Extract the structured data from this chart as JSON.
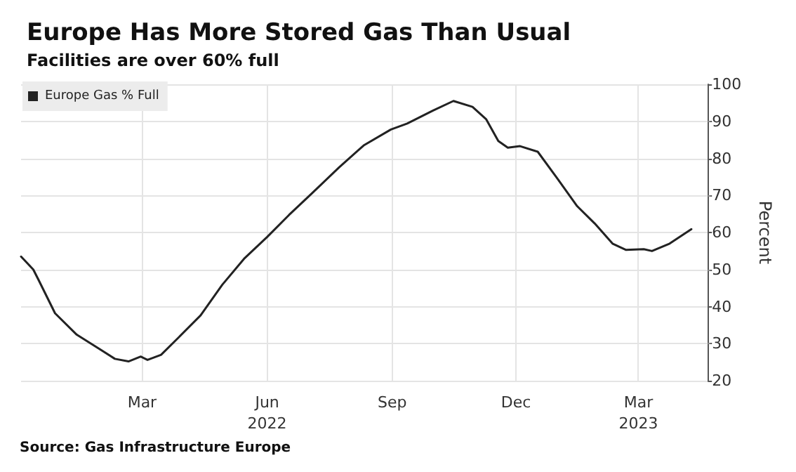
{
  "chart_data": {
    "type": "line",
    "title": "Europe Has More Stored Gas Than Usual",
    "subtitle": "Facilities are over 60% full",
    "ylabel": "Percent",
    "annotations": [
      "Source: Gas Infrastructure Europe"
    ],
    "x": [
      "2021-12-02",
      "2021-12-11",
      "2021-12-15",
      "2021-12-27",
      "2022-01-12",
      "2022-01-29",
      "2022-02-09",
      "2022-02-19",
      "2022-02-28",
      "2022-03-05",
      "2022-03-15",
      "2022-03-28",
      "2022-04-13",
      "2022-04-29",
      "2022-05-15",
      "2022-06-01",
      "2022-06-17",
      "2022-07-04",
      "2022-07-24",
      "2022-08-11",
      "2022-08-31",
      "2022-09-12",
      "2022-10-01",
      "2022-10-16",
      "2022-10-30",
      "2022-11-09",
      "2022-11-18",
      "2022-11-25",
      "2022-12-04",
      "2022-12-17",
      "2022-12-30",
      "2023-01-15",
      "2023-01-28",
      "2023-02-10",
      "2023-02-20",
      "2023-03-05",
      "2023-03-11",
      "2023-03-24",
      "2023-04-09"
    ],
    "series": [
      {
        "name": "Europe Gas % Full",
        "color": "#222222",
        "values": [
          53.5,
          50.0,
          47.1,
          38.2,
          32.4,
          28.5,
          25.9,
          25.2,
          26.5,
          25.6,
          27.0,
          31.7,
          37.6,
          45.9,
          52.9,
          58.8,
          64.7,
          70.6,
          77.6,
          83.5,
          87.8,
          89.4,
          92.9,
          95.5,
          93.9,
          90.6,
          84.7,
          82.9,
          83.3,
          81.8,
          75.3,
          67.1,
          62.4,
          57.0,
          55.3,
          55.5,
          55.0,
          57.0,
          60.9
        ]
      }
    ],
    "xlim": [
      "2021-12-02",
      "2023-04-21"
    ],
    "xticks": [
      {
        "value": "2022-03-01",
        "label": "Mar"
      },
      {
        "value": "2022-06-01",
        "label": "Jun\n2022"
      },
      {
        "value": "2022-09-01",
        "label": "Sep"
      },
      {
        "value": "2022-12-01",
        "label": "Dec"
      },
      {
        "value": "2023-03-01",
        "label": "Mar\n2023"
      }
    ],
    "ylim": [
      20,
      100
    ],
    "yticks": [
      20,
      30,
      40,
      50,
      60,
      70,
      80,
      90,
      100
    ],
    "grid": true,
    "legend": "top left",
    "marker": "none",
    "line_style": "solid"
  }
}
